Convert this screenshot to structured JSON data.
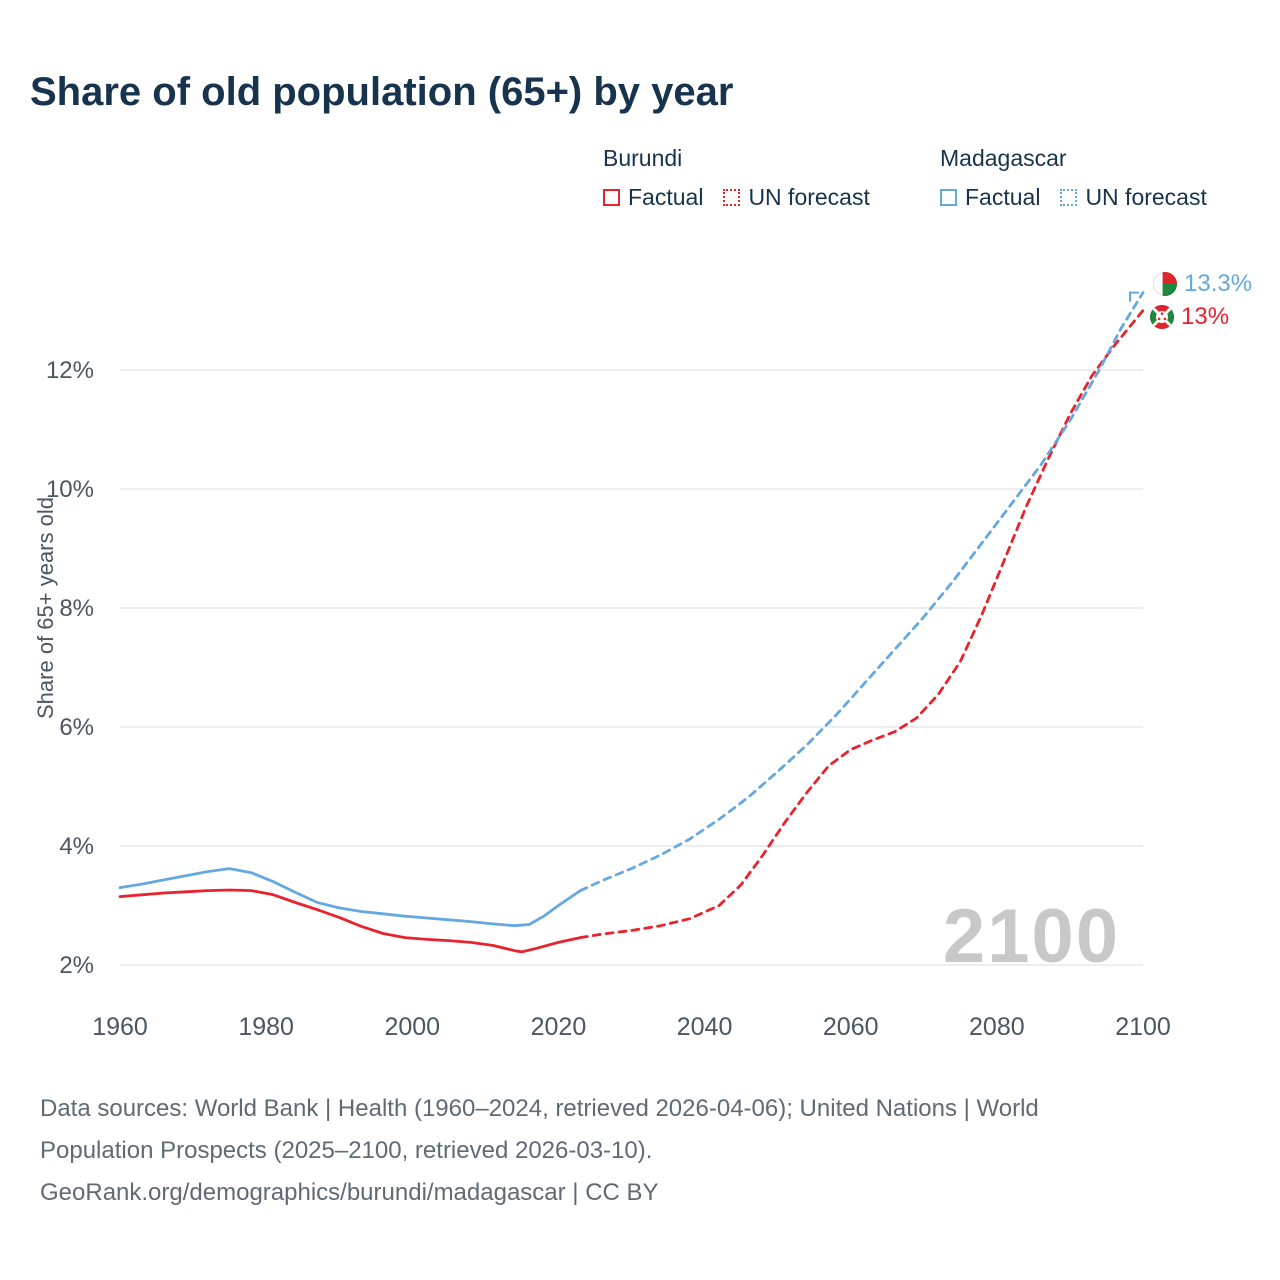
{
  "title": "Share of old population (65+) by year",
  "colors": {
    "burundi": "#e8232d",
    "madagascar": "#64a8e0",
    "title_text": "#17334e",
    "grid": "#e9e9ee",
    "axis_text": "#4b5663",
    "footer_text": "#5f6a75",
    "watermark": "#c8c8c8"
  },
  "legend": {
    "groups": [
      {
        "name": "Burundi",
        "items": [
          {
            "label": "Factual",
            "style": "solid"
          },
          {
            "label": "UN forecast",
            "style": "dotted"
          }
        ]
      },
      {
        "name": "Madagascar",
        "items": [
          {
            "label": "Factual",
            "style": "solid"
          },
          {
            "label": "UN forecast",
            "style": "dotted"
          }
        ]
      }
    ]
  },
  "chart_data": {
    "type": "line",
    "title": "Share of old population (65+) by year",
    "xlabel": "",
    "ylabel": "Share of 65+ years old",
    "xlim": [
      1960,
      2100
    ],
    "ylim": [
      2,
      13.5
    ],
    "grid": true,
    "x_ticks": [
      1960,
      1980,
      2000,
      2020,
      2040,
      2060,
      2080,
      2100
    ],
    "y_ticks": [
      {
        "value": 2,
        "label": "2%"
      },
      {
        "value": 4,
        "label": "4%"
      },
      {
        "value": 6,
        "label": "6%"
      },
      {
        "value": 8,
        "label": "8%"
      },
      {
        "value": 10,
        "label": "10%"
      },
      {
        "value": 12,
        "label": "12%"
      }
    ],
    "series": [
      {
        "name": "Burundi Factual",
        "color": "#e8232d",
        "dash": "solid",
        "points": [
          [
            1960,
            3.15
          ],
          [
            1963,
            3.18
          ],
          [
            1966,
            3.21
          ],
          [
            1969,
            3.23
          ],
          [
            1972,
            3.25
          ],
          [
            1975,
            3.26
          ],
          [
            1978,
            3.25
          ],
          [
            1981,
            3.18
          ],
          [
            1984,
            3.05
          ],
          [
            1987,
            2.93
          ],
          [
            1990,
            2.8
          ],
          [
            1993,
            2.65
          ],
          [
            1996,
            2.53
          ],
          [
            1999,
            2.46
          ],
          [
            2002,
            2.43
          ],
          [
            2005,
            2.41
          ],
          [
            2008,
            2.38
          ],
          [
            2011,
            2.33
          ],
          [
            2014,
            2.24
          ],
          [
            2015,
            2.22
          ],
          [
            2017,
            2.28
          ],
          [
            2020,
            2.38
          ],
          [
            2023,
            2.46
          ]
        ]
      },
      {
        "name": "Burundi UN forecast",
        "color": "#e8232d",
        "dash": "dashed",
        "points": [
          [
            2023,
            2.46
          ],
          [
            2026,
            2.52
          ],
          [
            2030,
            2.58
          ],
          [
            2034,
            2.66
          ],
          [
            2038,
            2.78
          ],
          [
            2042,
            3.0
          ],
          [
            2045,
            3.35
          ],
          [
            2048,
            3.85
          ],
          [
            2051,
            4.4
          ],
          [
            2054,
            4.9
          ],
          [
            2057,
            5.35
          ],
          [
            2060,
            5.62
          ],
          [
            2063,
            5.78
          ],
          [
            2066,
            5.92
          ],
          [
            2069,
            6.15
          ],
          [
            2072,
            6.55
          ],
          [
            2075,
            7.1
          ],
          [
            2078,
            7.9
          ],
          [
            2081,
            8.8
          ],
          [
            2084,
            9.7
          ],
          [
            2087,
            10.5
          ],
          [
            2090,
            11.25
          ],
          [
            2093,
            11.9
          ],
          [
            2096,
            12.4
          ],
          [
            2100,
            13.0
          ]
        ]
      },
      {
        "name": "Madagascar Factual",
        "color": "#64a8e0",
        "dash": "solid",
        "points": [
          [
            1960,
            3.3
          ],
          [
            1963,
            3.36
          ],
          [
            1966,
            3.43
          ],
          [
            1969,
            3.5
          ],
          [
            1972,
            3.57
          ],
          [
            1975,
            3.62
          ],
          [
            1978,
            3.55
          ],
          [
            1981,
            3.4
          ],
          [
            1984,
            3.22
          ],
          [
            1987,
            3.05
          ],
          [
            1990,
            2.96
          ],
          [
            1993,
            2.9
          ],
          [
            1996,
            2.86
          ],
          [
            1999,
            2.82
          ],
          [
            2002,
            2.79
          ],
          [
            2005,
            2.76
          ],
          [
            2008,
            2.73
          ],
          [
            2011,
            2.69
          ],
          [
            2014,
            2.66
          ],
          [
            2016,
            2.68
          ],
          [
            2018,
            2.82
          ],
          [
            2020,
            3.0
          ],
          [
            2023,
            3.25
          ]
        ]
      },
      {
        "name": "Madagascar UN forecast",
        "color": "#64a8e0",
        "dash": "dashed",
        "points": [
          [
            2023,
            3.25
          ],
          [
            2026,
            3.42
          ],
          [
            2030,
            3.62
          ],
          [
            2034,
            3.85
          ],
          [
            2038,
            4.12
          ],
          [
            2042,
            4.45
          ],
          [
            2046,
            4.82
          ],
          [
            2050,
            5.25
          ],
          [
            2054,
            5.7
          ],
          [
            2058,
            6.2
          ],
          [
            2062,
            6.75
          ],
          [
            2066,
            7.3
          ],
          [
            2070,
            7.85
          ],
          [
            2074,
            8.45
          ],
          [
            2078,
            9.1
          ],
          [
            2082,
            9.75
          ],
          [
            2086,
            10.4
          ],
          [
            2090,
            11.15
          ],
          [
            2094,
            12.0
          ],
          [
            2097,
            12.7
          ],
          [
            2100,
            13.3
          ]
        ]
      }
    ],
    "end_labels": [
      {
        "text": "13.3%",
        "series": "Madagascar",
        "flag": "madagascar-flag",
        "value": 13.3
      },
      {
        "text": "13%",
        "series": "Burundi",
        "flag": "burundi-flag",
        "value": 13.0
      }
    ],
    "watermark": "2100",
    "legend_position": "top-right"
  },
  "footer": {
    "line1": "Data sources: World Bank | Health (1960–2024, retrieved 2026-04-06); United Nations | World",
    "line2": "Population Prospects (2025–2100, retrieved 2026-03-10).",
    "line3": "GeoRank.org/demographics/burundi/madagascar | CC BY"
  }
}
